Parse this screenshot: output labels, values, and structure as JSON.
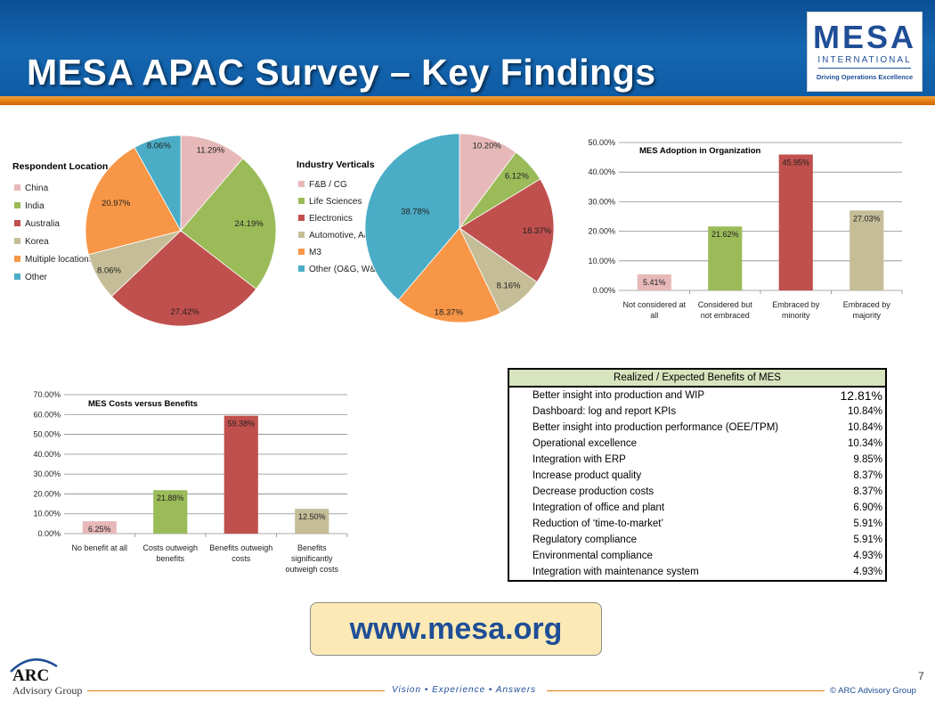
{
  "header": {
    "title": "MESA APAC Survey – Key Findings",
    "logo_main": "MESA",
    "logo_sub": "INTERNATIONAL",
    "logo_tag": "Driving Operations Excellence"
  },
  "chart_data": [
    {
      "type": "pie",
      "title": "Respondent Location",
      "legend_placement": "left",
      "categories": [
        "China",
        "India",
        "Australia",
        "Korea",
        "Multiple locations",
        "Other"
      ],
      "values": [
        11.29,
        24.19,
        27.42,
        8.06,
        20.97,
        8.06
      ],
      "labels": [
        "11.29%",
        "24.19%",
        "27.42%",
        "8.06%",
        "20.97%",
        "8.06%"
      ],
      "colors": [
        "#e6b9b8",
        "#9bbb59",
        "#c0504d",
        "#c4bd97",
        "#f79646",
        "#4bacc6"
      ]
    },
    {
      "type": "pie",
      "title": "Industry Verticals",
      "legend_placement": "left",
      "categories": [
        "F&B / CG",
        "Life Sciences",
        "Electronics",
        "Automotive, A&D",
        "M3",
        "Other (O&G, W&WW, etc)"
      ],
      "values": [
        10.2,
        6.12,
        18.37,
        8.16,
        18.37,
        38.78
      ],
      "labels": [
        "10.20%",
        "6.12%",
        "18.37%",
        "8.16%",
        "18.37%",
        "38.78%"
      ],
      "colors": [
        "#e6b9b8",
        "#9bbb59",
        "#c0504d",
        "#c4bd97",
        "#f79646",
        "#4bacc6"
      ]
    },
    {
      "type": "bar",
      "title": "MES Adoption in Organization",
      "categories": [
        [
          "Not considered at",
          "all"
        ],
        [
          "Considered but",
          "not embraced"
        ],
        [
          "Embraced by",
          "minority"
        ],
        [
          "Embraced by",
          "majority"
        ]
      ],
      "values": [
        5.41,
        21.62,
        45.95,
        27.03
      ],
      "labels": [
        "5.41%",
        "21.62%",
        "45.95%",
        "27.03%"
      ],
      "colors": [
        "#e6b9b8",
        "#9bbb59",
        "#c0504d",
        "#c4bd97"
      ],
      "yticks": [
        "0.00%",
        "10.00%",
        "20.00%",
        "30.00%",
        "40.00%",
        "50.00%"
      ],
      "ylim": [
        0,
        50
      ],
      "grid": true
    },
    {
      "type": "bar",
      "title": "MES Costs versus Benefits",
      "categories": [
        [
          "No benefit at all"
        ],
        [
          "Costs outweigh",
          "benefits"
        ],
        [
          "Benefits outweigh",
          "costs"
        ],
        [
          "Benefits",
          "significantly",
          "outweigh costs"
        ]
      ],
      "values": [
        6.25,
        21.88,
        59.38,
        12.5
      ],
      "labels": [
        "6.25%",
        "21.88%",
        "59.38%",
        "12.50%"
      ],
      "colors": [
        "#e6b9b8",
        "#9bbb59",
        "#c0504d",
        "#c4bd97"
      ],
      "yticks": [
        "0.00%",
        "10.00%",
        "20.00%",
        "30.00%",
        "40.00%",
        "50.00%",
        "60.00%",
        "70.00%"
      ],
      "ylim": [
        0,
        70
      ],
      "grid": true
    }
  ],
  "benefits_table": {
    "title": "Realized / Expected Benefits of MES",
    "rows": [
      {
        "label": "Better insight into production and WIP",
        "value": "12.81%"
      },
      {
        "label": "Dashboard: log and report KPIs",
        "value": "10.84%"
      },
      {
        "label": "Better insight into production performance (OEE/TPM)",
        "value": "10.84%"
      },
      {
        "label": "Operational excellence",
        "value": "10.34%"
      },
      {
        "label": "Integration with ERP",
        "value": "9.85%"
      },
      {
        "label": "Increase product quality",
        "value": "8.37%"
      },
      {
        "label": "Decrease production costs",
        "value": "8.37%"
      },
      {
        "label": "Integration of office and plant",
        "value": "6.90%"
      },
      {
        "label": "Reduction of ‘time-to-market’",
        "value": "5.91%"
      },
      {
        "label": "Regulatory compliance",
        "value": "5.91%"
      },
      {
        "label": "Environmental compliance",
        "value": "4.93%"
      },
      {
        "label": "Integration with maintenance system",
        "value": "4.93%"
      }
    ]
  },
  "url": "www.mesa.org",
  "footer": {
    "arc": "ARC",
    "arc_sub": "Advisory Group",
    "tagline": "Vision • Experience • Answers",
    "copyright": "© ARC Advisory Group",
    "page": "7"
  }
}
